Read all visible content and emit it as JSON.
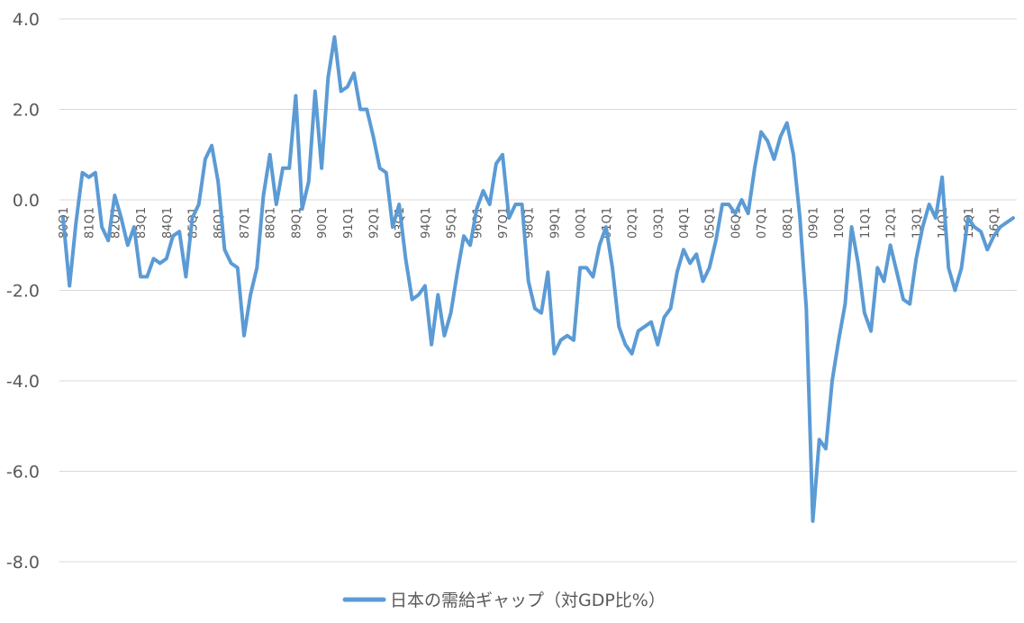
{
  "chart_data": {
    "type": "line",
    "title": "",
    "xlabel": "",
    "ylabel": "",
    "ylim": [
      -8,
      4
    ],
    "yticks": [
      "4.0",
      "2.0",
      "0.0",
      "-2.0",
      "-4.0",
      "-6.0",
      "-8.0"
    ],
    "ytick_values": [
      4,
      2,
      0,
      -2,
      -4,
      -6,
      -8
    ],
    "grid": true,
    "legend": "bottom",
    "start_period": "80Q1",
    "x_tick_labels": [
      "80Q1",
      "81Q1",
      "82Q1",
      "83Q1",
      "84Q1",
      "85Q1",
      "86Q1",
      "87Q1",
      "88Q1",
      "89Q1",
      "90Q1",
      "91Q1",
      "92Q1",
      "93Q1",
      "94Q1",
      "95Q1",
      "96Q1",
      "97Q1",
      "98Q1",
      "99Q1",
      "00Q1",
      "01Q1",
      "02Q1",
      "03Q1",
      "04Q1",
      "05Q1",
      "06Q1",
      "07Q1",
      "08Q1",
      "09Q1",
      "10Q1",
      "11Q1",
      "12Q1",
      "13Q1",
      "14Q1",
      "15Q1",
      "16Q1"
    ],
    "series": [
      {
        "name": "日本の需給ギャップ（対GDP比%）",
        "color": "#5b9bd5",
        "values": [
          -0.4,
          -1.9,
          -0.5,
          0.6,
          0.5,
          0.6,
          -0.6,
          -0.9,
          0.1,
          -0.4,
          -1.0,
          -0.6,
          -1.7,
          -1.7,
          -1.3,
          -1.4,
          -1.3,
          -0.8,
          -0.7,
          -1.7,
          -0.4,
          -0.1,
          0.9,
          1.2,
          0.4,
          -1.1,
          -1.4,
          -1.5,
          -3.0,
          -2.1,
          -1.5,
          0.1,
          1.0,
          -0.1,
          0.7,
          0.7,
          2.3,
          -0.2,
          0.4,
          2.4,
          0.7,
          2.7,
          3.6,
          2.4,
          2.5,
          2.8,
          2.0,
          2.0,
          1.4,
          0.7,
          0.6,
          -0.6,
          -0.1,
          -1.3,
          -2.2,
          -2.1,
          -1.9,
          -3.2,
          -2.1,
          -3.0,
          -2.5,
          -1.6,
          -0.8,
          -1.0,
          -0.2,
          0.2,
          -0.1,
          0.8,
          1.0,
          -0.4,
          -0.1,
          -0.1,
          -1.8,
          -2.4,
          -2.5,
          -1.6,
          -3.4,
          -3.1,
          -3.0,
          -3.1,
          -1.5,
          -1.5,
          -1.7,
          -1.0,
          -0.6,
          -1.5,
          -2.8,
          -3.2,
          -3.4,
          -2.9,
          -2.8,
          -2.7,
          -3.2,
          -2.6,
          -2.4,
          -1.6,
          -1.1,
          -1.4,
          -1.2,
          -1.8,
          -1.5,
          -0.9,
          -0.1,
          -0.1,
          -0.3,
          0.0,
          -0.3,
          0.7,
          1.5,
          1.3,
          0.9,
          1.4,
          1.7,
          1.0,
          -0.4,
          -2.4,
          -7.1,
          -5.3,
          -5.5,
          -4.0,
          -3.1,
          -2.3,
          -0.6,
          -1.4,
          -2.5,
          -2.9,
          -1.5,
          -1.8,
          -1.0,
          -1.6,
          -2.2,
          -2.3,
          -1.3,
          -0.6,
          -0.1,
          -0.4,
          0.5,
          -1.5,
          -2.0,
          -1.5,
          -0.4,
          -0.6,
          -0.7,
          -1.1,
          -0.8,
          -0.6,
          -0.5,
          -0.4
        ]
      }
    ]
  }
}
